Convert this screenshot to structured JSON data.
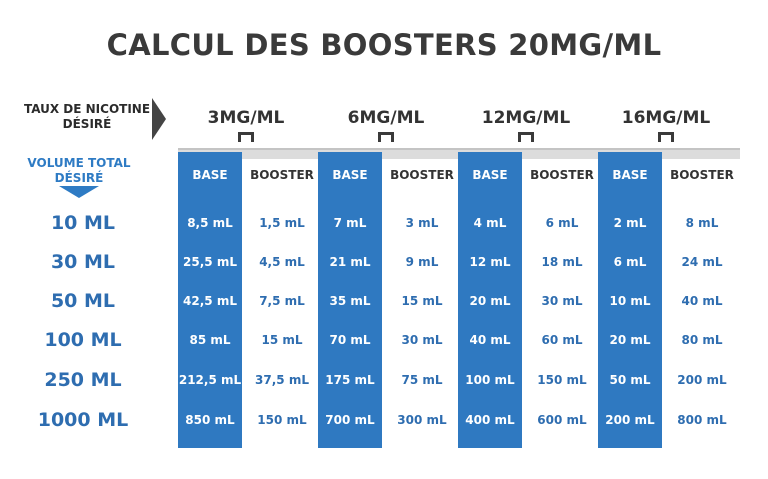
{
  "title": "CALCUL DES BOOSTERS 20MG/ML",
  "nicotine_label": "TAUX DE NICOTINE DÉSIRÉ",
  "volume_label": "VOLUME TOTAL DÉSIRÉ",
  "colors": {
    "blue": "#2f79c1",
    "blue_text": "#2e6db0",
    "dark": "#333333"
  },
  "headers": {
    "concentrations": [
      "3MG/ML",
      "6MG/ML",
      "12MG/ML",
      "16MG/ML"
    ],
    "base": "BASE",
    "booster": "BOOSTER"
  },
  "rows": [
    {
      "volume": "10 ML",
      "values": [
        "8,5 mL",
        "1,5 mL",
        "7 mL",
        "3 mL",
        "4 mL",
        "6 mL",
        "2 mL",
        "8 mL"
      ]
    },
    {
      "volume": "30 ML",
      "values": [
        "25,5 mL",
        "4,5 mL",
        "21 mL",
        "9 mL",
        "12 mL",
        "18 mL",
        "6 mL",
        "24 mL"
      ]
    },
    {
      "volume": "50 ML",
      "values": [
        "42,5 mL",
        "7,5 mL",
        "35 mL",
        "15 mL",
        "20 mL",
        "30 mL",
        "10 mL",
        "40 mL"
      ]
    },
    {
      "volume": "100 ML",
      "values": [
        "85 mL",
        "15 mL",
        "70 mL",
        "30 mL",
        "40 mL",
        "60 mL",
        "20 mL",
        "80 mL"
      ]
    },
    {
      "volume": "250 ML",
      "values": [
        "212,5 mL",
        "37,5 mL",
        "175 mL",
        "75 mL",
        "100 mL",
        "150 mL",
        "50 mL",
        "200 mL"
      ]
    },
    {
      "volume": "1000 ML",
      "values": [
        "850 mL",
        "150 mL",
        "700 mL",
        "300 mL",
        "400 mL",
        "600 mL",
        "200 mL",
        "800 mL"
      ]
    }
  ]
}
